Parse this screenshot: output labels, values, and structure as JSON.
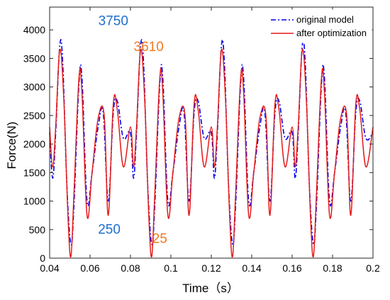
{
  "chart_data": {
    "type": "line",
    "xlabel": "Time（s）",
    "ylabel": "Force(N)",
    "xlim": [
      0.04,
      0.2
    ],
    "ylim": [
      0,
      4400
    ],
    "xticks": [
      0.04,
      0.06,
      0.08,
      0.1,
      0.12,
      0.14,
      0.16,
      0.18,
      0.2
    ],
    "xtick_labels": [
      "0.04",
      "0.06",
      "0.08",
      "0.1",
      "0.12",
      "0.14",
      "0.16",
      "0.18",
      "0.2"
    ],
    "yticks": [
      0,
      500,
      1000,
      1500,
      2000,
      2500,
      3000,
      3500,
      4000
    ],
    "ytick_labels": [
      "0",
      "500",
      "1000",
      "1500",
      "2000",
      "2500",
      "3000",
      "3500",
      "4000"
    ],
    "grid": false,
    "legend_position": "top-right",
    "period": 0.04,
    "series": [
      {
        "name": "original model",
        "color": "#0000ee",
        "style": "dash-dot",
        "x": [
          0.04,
          0.0415,
          0.043,
          0.045,
          0.0465,
          0.0485,
          0.0505,
          0.052,
          0.0545,
          0.056,
          0.0585,
          0.061,
          0.064,
          0.0665,
          0.069,
          0.0715,
          0.0735,
          0.0765,
          0.08
        ],
        "y": [
          2200,
          1400,
          2200,
          3720,
          3400,
          1300,
          250,
          900,
          3050,
          3150,
          1000,
          1500,
          2300,
          2550,
          1000,
          2550,
          2750,
          2100,
          2200
        ]
      },
      {
        "name": "after optimization",
        "color": "#e61c1c",
        "style": "solid",
        "x": [
          0.04,
          0.0415,
          0.043,
          0.045,
          0.047,
          0.049,
          0.0505,
          0.052,
          0.0545,
          0.056,
          0.0585,
          0.061,
          0.064,
          0.067,
          0.069,
          0.0715,
          0.0735,
          0.0765,
          0.08
        ],
        "y": [
          2300,
          1600,
          2300,
          3650,
          2800,
          800,
          25,
          1100,
          3150,
          2900,
          750,
          1500,
          2450,
          2500,
          750,
          2700,
          2600,
          1600,
          2300
        ]
      }
    ],
    "annotations": [
      {
        "text": "3750",
        "x": 0.0715,
        "y": 4080,
        "color": "#1f6fd0"
      },
      {
        "text": "3610",
        "x": 0.089,
        "y": 3630,
        "color": "#f07a20"
      },
      {
        "text": "250",
        "x": 0.0695,
        "y": 430,
        "color": "#1f6fd0"
      },
      {
        "text": "25",
        "x": 0.0945,
        "y": 270,
        "color": "#f07a20"
      }
    ]
  }
}
